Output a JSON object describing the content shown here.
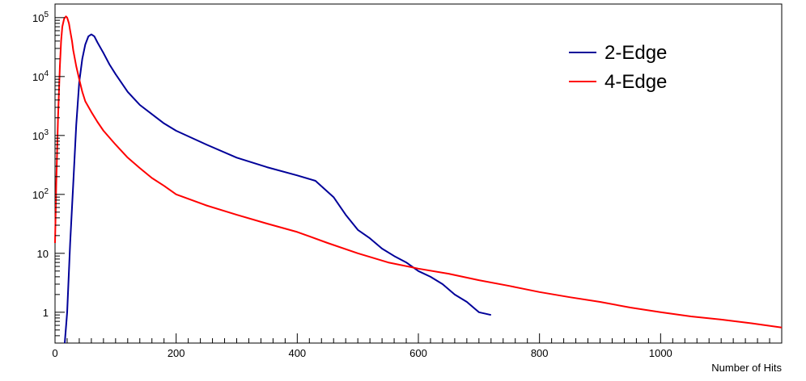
{
  "chart_data": {
    "type": "line",
    "title": "",
    "xlabel": "Number of Hits",
    "ylabel": "",
    "xlim": [
      0,
      1200
    ],
    "ylim": [
      0.3,
      170000
    ],
    "yscale": "log",
    "grid": false,
    "legend_position": "top-right",
    "x_tick_labels": [
      "0",
      "200",
      "400",
      "600",
      "800",
      "1000"
    ],
    "y_tick_labels": [
      {
        "base": "1",
        "exp": ""
      },
      {
        "base": "10",
        "exp": ""
      },
      {
        "base": "10",
        "exp": "2"
      },
      {
        "base": "10",
        "exp": "3"
      },
      {
        "base": "10",
        "exp": "4"
      },
      {
        "base": "10",
        "exp": "5"
      }
    ],
    "series": [
      {
        "name": "2-Edge",
        "color": "#000099",
        "x": [
          16,
          20,
          25,
          30,
          35,
          40,
          45,
          50,
          55,
          60,
          65,
          70,
          80,
          90,
          100,
          120,
          140,
          160,
          180,
          200,
          250,
          300,
          350,
          400,
          430,
          460,
          480,
          500,
          520,
          540,
          560,
          580,
          600,
          620,
          640,
          660,
          680,
          700,
          720
        ],
        "y": [
          0.3,
          1,
          15,
          150,
          1500,
          8000,
          20000,
          35000,
          48000,
          52000,
          48000,
          38000,
          25000,
          16000,
          11000,
          5500,
          3300,
          2300,
          1600,
          1200,
          700,
          420,
          290,
          210,
          170,
          90,
          45,
          25,
          18,
          12,
          9,
          7,
          5,
          4,
          3,
          2,
          1.5,
          1,
          0.9
        ]
      },
      {
        "name": "4-Edge",
        "color": "#ff0000",
        "x": [
          0,
          2,
          5,
          8,
          10,
          12,
          15,
          18,
          20,
          23,
          25,
          28,
          30,
          35,
          40,
          45,
          50,
          60,
          70,
          80,
          100,
          120,
          140,
          160,
          180,
          200,
          250,
          300,
          350,
          400,
          450,
          500,
          550,
          600,
          650,
          700,
          750,
          800,
          850,
          900,
          950,
          1000,
          1050,
          1100,
          1150,
          1200
        ],
        "y": [
          15,
          150,
          2000,
          15000,
          40000,
          70000,
          95000,
          105000,
          100000,
          80000,
          60000,
          40000,
          28000,
          15000,
          9000,
          5500,
          3800,
          2500,
          1700,
          1200,
          700,
          420,
          280,
          190,
          140,
          100,
          65,
          45,
          32,
          23,
          15,
          10,
          7,
          5.5,
          4.5,
          3.5,
          2.8,
          2.2,
          1.8,
          1.5,
          1.2,
          1,
          0.85,
          0.75,
          0.65,
          0.55
        ]
      }
    ]
  }
}
